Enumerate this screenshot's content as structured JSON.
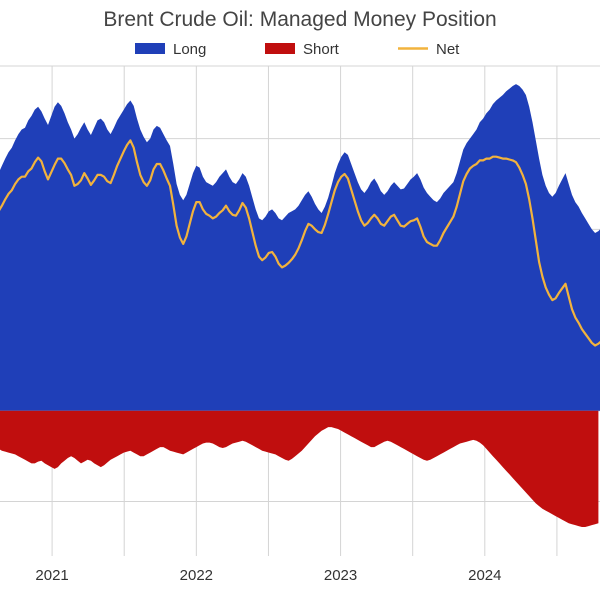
{
  "chart_data": {
    "type": "area",
    "title": "Brent Crude Oil: Managed Money Position",
    "xlabel": "",
    "ylabel": "",
    "x_start": "2020-08",
    "x_end": "2024-11",
    "frequency": "weekly",
    "ylim": [
      -160000,
      380000
    ],
    "grid": true,
    "legend_position": "top-center",
    "x_tick_labels": [
      "2021",
      "2022",
      "2023",
      "2024"
    ],
    "x_tick_dates": [
      "2021-01-01",
      "2022-01-01",
      "2023-01-01",
      "2024-01-01"
    ],
    "colors": {
      "long": "#1f3fb8",
      "short": "#c00e0e",
      "net": "#f2b33d"
    },
    "series": [
      {
        "name": "Long",
        "values": [
          245000,
          255000,
          262000,
          270000,
          278000,
          285000,
          290000,
          298000,
          305000,
          310000,
          312000,
          320000,
          325000,
          332000,
          335000,
          330000,
          322000,
          315000,
          325000,
          335000,
          340000,
          336000,
          328000,
          318000,
          310000,
          300000,
          305000,
          312000,
          318000,
          310000,
          304000,
          312000,
          320000,
          322000,
          318000,
          310000,
          305000,
          312000,
          320000,
          326000,
          332000,
          338000,
          342000,
          336000,
          322000,
          310000,
          302000,
          296000,
          300000,
          310000,
          314000,
          312000,
          305000,
          298000,
          292000,
          272000,
          250000,
          238000,
          232000,
          238000,
          250000,
          262000,
          270000,
          268000,
          258000,
          252000,
          250000,
          248000,
          252000,
          258000,
          262000,
          266000,
          258000,
          252000,
          250000,
          255000,
          262000,
          258000,
          248000,
          235000,
          222000,
          212000,
          210000,
          214000,
          220000,
          222000,
          218000,
          212000,
          210000,
          214000,
          218000,
          220000,
          222000,
          226000,
          232000,
          238000,
          242000,
          236000,
          228000,
          222000,
          218000,
          225000,
          235000,
          248000,
          262000,
          272000,
          280000,
          285000,
          282000,
          272000,
          262000,
          252000,
          244000,
          240000,
          245000,
          252000,
          256000,
          250000,
          242000,
          238000,
          242000,
          248000,
          252000,
          248000,
          244000,
          245000,
          250000,
          255000,
          258000,
          262000,
          255000,
          246000,
          240000,
          236000,
          232000,
          230000,
          234000,
          240000,
          244000,
          248000,
          252000,
          262000,
          275000,
          288000,
          295000,
          300000,
          305000,
          310000,
          318000,
          322000,
          328000,
          332000,
          338000,
          342000,
          345000,
          348000,
          352000,
          355000,
          358000,
          360000,
          358000,
          354000,
          348000,
          335000,
          318000,
          298000,
          278000,
          260000,
          248000,
          240000,
          236000,
          240000,
          248000,
          255000,
          262000,
          250000,
          238000,
          230000,
          225000,
          218000,
          212000,
          206000,
          200000,
          196000,
          198000,
          202000,
          200000
        ]
      },
      {
        "name": "Short",
        "values": [
          -38000,
          -40000,
          -42000,
          -44000,
          -45000,
          -46000,
          -47000,
          -48000,
          -50000,
          -52000,
          -54000,
          -56000,
          -58000,
          -58000,
          -56000,
          -55000,
          -58000,
          -60000,
          -62000,
          -64000,
          -62000,
          -58000,
          -55000,
          -52000,
          -50000,
          -52000,
          -55000,
          -58000,
          -56000,
          -54000,
          -55000,
          -58000,
          -60000,
          -62000,
          -60000,
          -57000,
          -54000,
          -52000,
          -50000,
          -48000,
          -46000,
          -45000,
          -44000,
          -46000,
          -48000,
          -50000,
          -50000,
          -48000,
          -46000,
          -44000,
          -42000,
          -40000,
          -40000,
          -42000,
          -44000,
          -45000,
          -46000,
          -47000,
          -48000,
          -46000,
          -44000,
          -42000,
          -40000,
          -38000,
          -36000,
          -35000,
          -35000,
          -36000,
          -38000,
          -40000,
          -41000,
          -40000,
          -38000,
          -36000,
          -35000,
          -34000,
          -33000,
          -34000,
          -36000,
          -38000,
          -40000,
          -42000,
          -44000,
          -45000,
          -46000,
          -47000,
          -48000,
          -50000,
          -52000,
          -54000,
          -55000,
          -53000,
          -50000,
          -47000,
          -44000,
          -40000,
          -36000,
          -32000,
          -28000,
          -25000,
          -22000,
          -20000,
          -18000,
          -18000,
          -19000,
          -20000,
          -22000,
          -24000,
          -26000,
          -28000,
          -30000,
          -32000,
          -34000,
          -36000,
          -38000,
          -40000,
          -40000,
          -38000,
          -36000,
          -34000,
          -33000,
          -34000,
          -36000,
          -38000,
          -40000,
          -42000,
          -44000,
          -46000,
          -48000,
          -50000,
          -52000,
          -54000,
          -55000,
          -54000,
          -52000,
          -50000,
          -48000,
          -46000,
          -44000,
          -42000,
          -40000,
          -38000,
          -36000,
          -35000,
          -34000,
          -33000,
          -32000,
          -33000,
          -35000,
          -38000,
          -42000,
          -46000,
          -50000,
          -54000,
          -58000,
          -62000,
          -66000,
          -70000,
          -74000,
          -78000,
          -82000,
          -86000,
          -90000,
          -94000,
          -98000,
          -102000,
          -105000,
          -108000,
          -110000,
          -112000,
          -114000,
          -116000,
          -118000,
          -120000,
          -122000,
          -124000,
          -125000,
          -126000,
          -127000,
          -128000,
          -128000,
          -127000,
          -126000,
          -125000,
          -124000
        ]
      },
      {
        "name": "Net",
        "values": [
          207000,
          215000,
          220000,
          226000,
          233000,
          239000,
          243000,
          250000,
          255000,
          258000,
          258000,
          264000,
          267000,
          274000,
          279000,
          275000,
          264000,
          255000,
          263000,
          271000,
          278000,
          278000,
          273000,
          266000,
          260000,
          248000,
          250000,
          254000,
          262000,
          256000,
          249000,
          254000,
          260000,
          260000,
          258000,
          253000,
          251000,
          260000,
          270000,
          278000,
          286000,
          293000,
          298000,
          290000,
          274000,
          260000,
          252000,
          248000,
          254000,
          266000,
          272000,
          272000,
          265000,
          256000,
          248000,
          227000,
          204000,
          191000,
          184000,
          192000,
          206000,
          220000,
          230000,
          230000,
          222000,
          217000,
          215000,
          212000,
          214000,
          218000,
          221000,
          226000,
          220000,
          216000,
          215000,
          221000,
          229000,
          224000,
          212000,
          197000,
          182000,
          170000,
          166000,
          169000,
          174000,
          175000,
          170000,
          162000,
          158000,
          160000,
          163000,
          167000,
          172000,
          179000,
          188000,
          198000,
          206000,
          204000,
          200000,
          197000,
          196000,
          205000,
          217000,
          230000,
          243000,
          252000,
          258000,
          261000,
          256000,
          244000,
          232000,
          220000,
          210000,
          204000,
          207000,
          212000,
          216000,
          212000,
          206000,
          204000,
          209000,
          214000,
          216000,
          210000,
          204000,
          203000,
          206000,
          209000,
          210000,
          212000,
          203000,
          192000,
          186000,
          184000,
          182000,
          182000,
          188000,
          196000,
          202000,
          208000,
          214000,
          225000,
          239000,
          253000,
          261000,
          267000,
          270000,
          272000,
          276000,
          276000,
          278000,
          278000,
          280000,
          280000,
          279000,
          278000,
          278000,
          277000,
          276000,
          274000,
          268000,
          260000,
          250000,
          233000,
          212000,
          188000,
          164000,
          148000,
          136000,
          128000,
          122000,
          124000,
          130000,
          135000,
          140000,
          126000,
          112000,
          103000,
          97000,
          90000,
          85000,
          80000,
          75000,
          72000,
          74000,
          77000,
          76000
        ]
      }
    ]
  }
}
